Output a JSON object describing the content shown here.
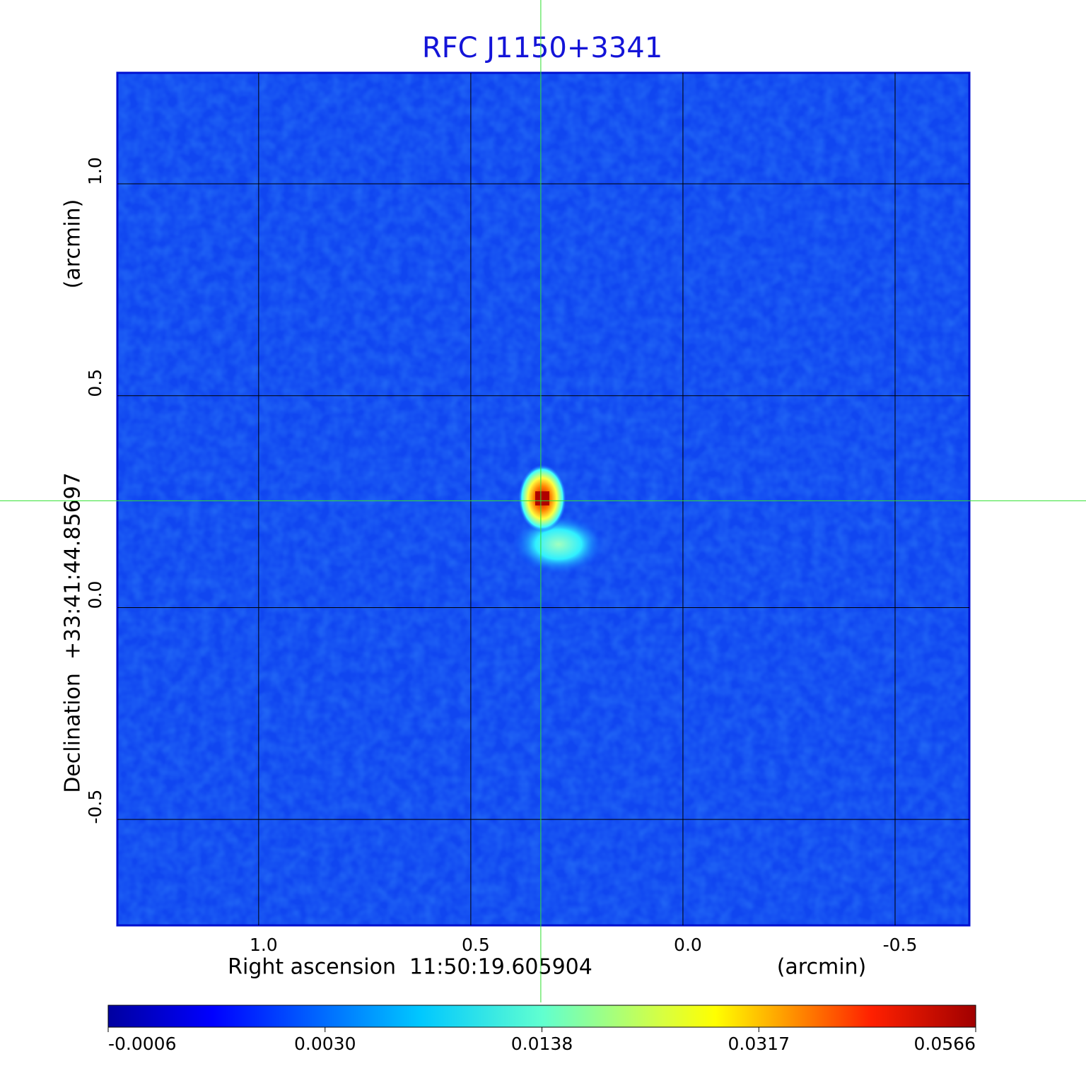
{
  "chart_data": {
    "type": "image",
    "title": "RFC J1150+3341",
    "xlabel": "Right ascension  11:50:19.605904",
    "xunit": "(arcmin)",
    "ylabel": "Declination  +33:41:44.85697",
    "yunit": "(arcmin)",
    "xlim": [
      1.333,
      -0.675
    ],
    "ylim": [
      -0.75,
      1.262
    ],
    "xticks": [
      {
        "value": 1,
        "label": "1.0"
      },
      0.5,
      {
        "value": 0,
        "label": "0.0"
      },
      -0.5
    ],
    "yticks": [
      -0.5,
      {
        "value": 0,
        "label": "0.0"
      },
      0.5,
      {
        "value": 1,
        "label": "1.0"
      }
    ],
    "grid": true,
    "crosshair": {
      "x": 0.335,
      "y": 0.252
    },
    "colorbar": {
      "ticks": [
        {
          "value": -0.0006,
          "label": "-0.0006"
        },
        {
          "value": 0.003,
          "label": "0.0030"
        },
        {
          "value": 0.0138,
          "label": "0.0138"
        },
        {
          "value": 0.0317,
          "label": "0.0317"
        },
        {
          "value": 0.0566,
          "label": "0.0566"
        }
      ]
    }
  }
}
